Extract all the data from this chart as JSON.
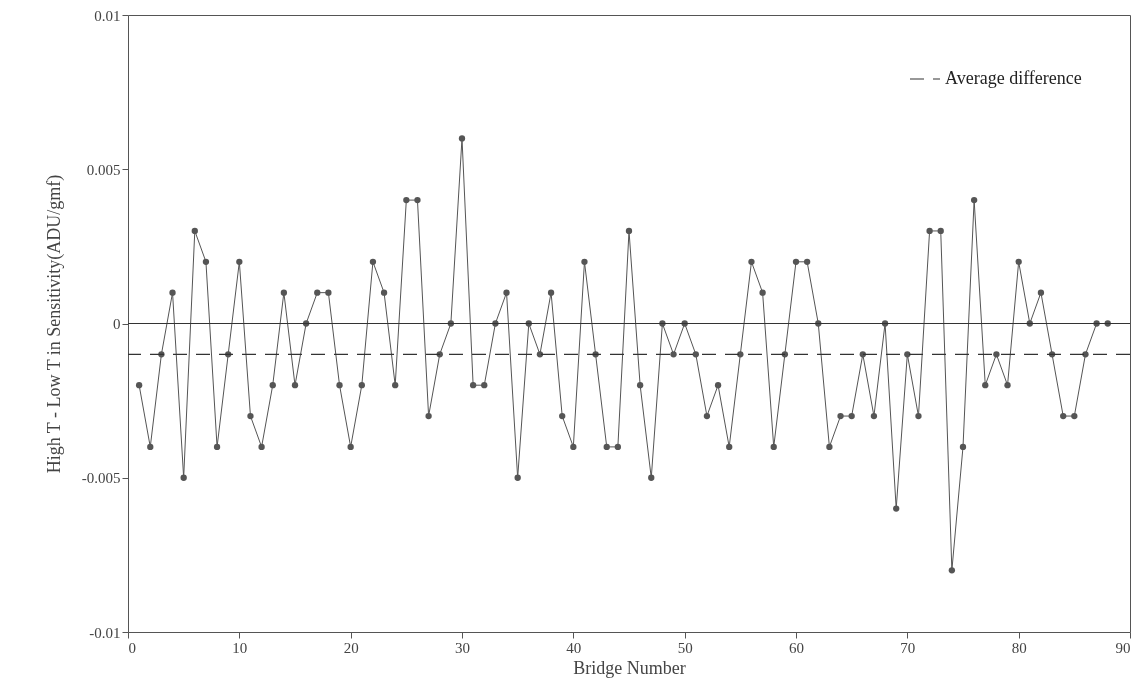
{
  "chart_data": {
    "type": "line",
    "xlabel": "Bridge Number",
    "ylabel": "High T - Low T in Sensitivity(ADU/gmf)",
    "x": [
      1,
      2,
      3,
      4,
      5,
      6,
      7,
      8,
      9,
      10,
      11,
      12,
      13,
      14,
      15,
      16,
      17,
      18,
      19,
      20,
      21,
      22,
      23,
      24,
      25,
      26,
      27,
      28,
      29,
      30,
      31,
      32,
      33,
      34,
      35,
      36,
      37,
      38,
      39,
      40,
      41,
      42,
      43,
      44,
      45,
      46,
      47,
      48,
      49,
      50,
      51,
      52,
      53,
      54,
      55,
      56,
      57,
      58,
      59,
      60,
      61,
      62,
      63,
      64,
      65,
      66,
      67,
      68,
      69,
      70,
      71,
      72,
      73,
      74,
      75,
      76,
      77,
      78,
      79,
      80,
      81,
      82,
      83,
      84,
      85,
      86,
      87,
      88
    ],
    "series": [
      {
        "color": "#555555",
        "values": [
          -0.002,
          -0.004,
          -0.001,
          0.001,
          -0.005,
          0.003,
          0.002,
          -0.004,
          -0.001,
          0.002,
          -0.003,
          -0.004,
          -0.002,
          0.001,
          -0.002,
          0,
          0.001,
          0.001,
          -0.002,
          -0.004,
          -0.002,
          0.002,
          0.001,
          -0.002,
          0.004,
          0.004,
          -0.003,
          -0.001,
          0,
          0.006,
          -0.002,
          -0.002,
          0,
          0.001,
          -0.005,
          0,
          -0.001,
          0.001,
          -0.003,
          -0.004,
          0.002,
          -0.001,
          -0.004,
          -0.004,
          0.003,
          -0.002,
          -0.005,
          0,
          -0.001,
          0,
          -0.001,
          -0.003,
          -0.002,
          -0.004,
          -0.001,
          0.002,
          0.001,
          -0.004,
          -0.001,
          0.002,
          0.002,
          0,
          -0.004,
          -0.003,
          -0.003,
          -0.001,
          -0.003,
          0,
          -0.006,
          -0.001,
          -0.003,
          0.003,
          0.003,
          -0.008,
          -0.004,
          0.004,
          -0.002,
          -0.001,
          -0.002,
          0.002,
          0,
          0.001,
          -0.001,
          -0.003,
          -0.003,
          -0.001,
          0,
          0
        ]
      }
    ],
    "xlim": [
      0,
      90
    ],
    "xticks": [
      0,
      10,
      20,
      30,
      40,
      50,
      60,
      70,
      80,
      90
    ],
    "ylim": [
      -0.01,
      0.01
    ],
    "yticks": [
      -0.01,
      -0.005,
      0,
      0.005,
      0.01
    ],
    "ref_lines": [
      {
        "axis": "y",
        "value": 0,
        "color": "#333333",
        "line_style": "solid"
      },
      {
        "axis": "y",
        "value": -0.001,
        "label": "Average difference",
        "color": "#333333",
        "line_style": "dashed"
      }
    ],
    "legend": "top right",
    "marker": "circle",
    "line_style": "solid",
    "grid": false
  }
}
